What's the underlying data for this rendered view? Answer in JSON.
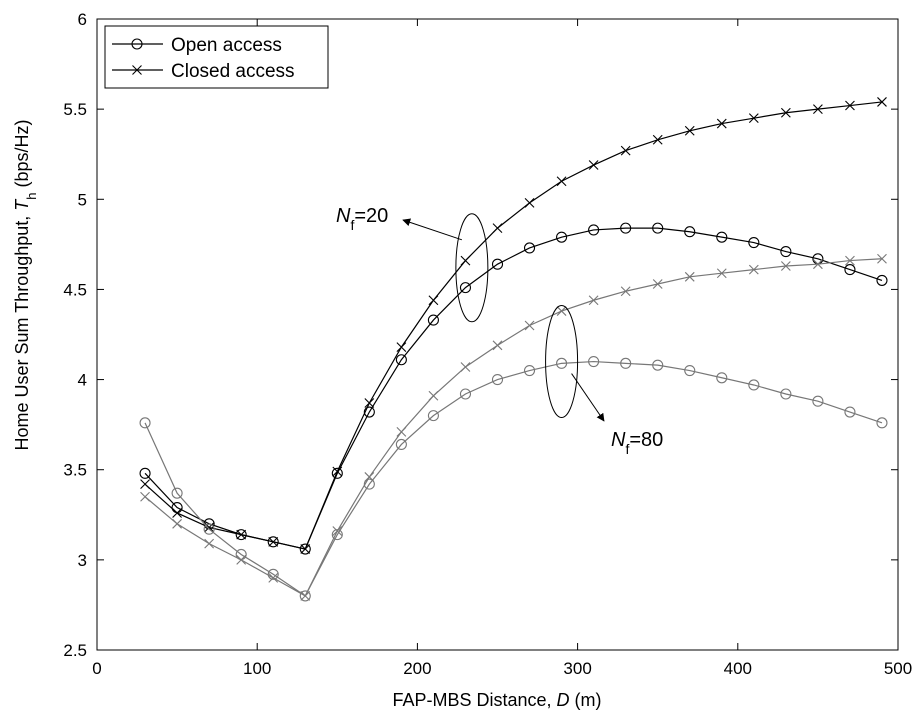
{
  "chart_data": {
    "type": "line",
    "xlabel": {
      "text": "FAP-MBS Distance, ",
      "var": "D",
      "unit": " (m)"
    },
    "ylabel": {
      "text": "Home User Sum Throughput, ",
      "var": "T",
      "sub": "h",
      "unit": "  (bps/Hz)"
    },
    "xlim": [
      0,
      500
    ],
    "ylim": [
      2.5,
      6
    ],
    "xticks": [
      0,
      100,
      200,
      300,
      400,
      500
    ],
    "yticks": [
      2.5,
      3,
      3.5,
      4,
      4.5,
      5,
      5.5,
      6
    ],
    "ytick_labels": [
      "2.5",
      "3",
      "3.5",
      "4",
      "4.5",
      "5",
      "5.5",
      "6"
    ],
    "grid": false,
    "legend_position": "top-left",
    "legend": [
      {
        "label": "Open access",
        "marker": "circle"
      },
      {
        "label": "Closed access",
        "marker": "x"
      }
    ],
    "x": [
      30,
      50,
      70,
      90,
      110,
      130,
      150,
      170,
      190,
      210,
      230,
      250,
      270,
      290,
      310,
      330,
      350,
      370,
      390,
      410,
      430,
      450,
      470,
      490
    ],
    "series": [
      {
        "group": "Nf=20",
        "access": "Open access",
        "marker": "circle",
        "color": "#000000",
        "values": [
          3.48,
          3.29,
          3.2,
          3.14,
          3.1,
          3.06,
          3.48,
          3.82,
          4.11,
          4.33,
          4.51,
          4.64,
          4.73,
          4.79,
          4.83,
          4.84,
          4.84,
          4.82,
          4.79,
          4.76,
          4.71,
          4.67,
          4.61,
          4.55
        ]
      },
      {
        "group": "Nf=20",
        "access": "Closed access",
        "marker": "x",
        "color": "#000000",
        "values": [
          3.42,
          3.26,
          3.18,
          3.14,
          3.1,
          3.06,
          3.49,
          3.87,
          4.18,
          4.44,
          4.66,
          4.84,
          4.98,
          5.1,
          5.19,
          5.27,
          5.33,
          5.38,
          5.42,
          5.45,
          5.48,
          5.5,
          5.52,
          5.54
        ]
      },
      {
        "group": "Nf=80",
        "access": "Open access",
        "marker": "circle",
        "color": "#777777",
        "values": [
          3.76,
          3.37,
          3.17,
          3.03,
          2.92,
          2.8,
          3.14,
          3.42,
          3.64,
          3.8,
          3.92,
          4.0,
          4.05,
          4.09,
          4.1,
          4.09,
          4.08,
          4.05,
          4.01,
          3.97,
          3.92,
          3.88,
          3.82,
          3.76
        ]
      },
      {
        "group": "Nf=80",
        "access": "Closed access",
        "marker": "x",
        "color": "#777777",
        "values": [
          3.35,
          3.2,
          3.09,
          3.0,
          2.9,
          2.8,
          3.16,
          3.46,
          3.71,
          3.91,
          4.07,
          4.19,
          4.3,
          4.38,
          4.44,
          4.49,
          4.53,
          4.57,
          4.59,
          4.61,
          4.63,
          4.64,
          4.66,
          4.67
        ]
      }
    ],
    "annotations": [
      {
        "var": "N",
        "sub": "f",
        "text": "=20",
        "ellipse_center": [
          234,
          4.62
        ],
        "arrow_to": [
          225,
          4.88
        ]
      },
      {
        "var": "N",
        "sub": "f",
        "text": "=80",
        "ellipse_center": [
          290,
          4.1
        ],
        "arrow_to": [
          288,
          3.84
        ]
      }
    ]
  }
}
